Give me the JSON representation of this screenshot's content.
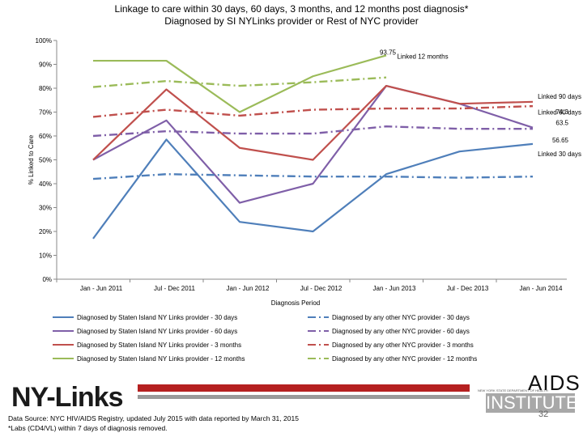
{
  "title_line1": "Linkage to care within 30 days, 60 days, 3 months, and 12 months post diagnosis*",
  "title_line2": "Diagnosed by SI NYLinks provider or Rest of NYC provider",
  "chart_data": {
    "type": "line",
    "title": "Linkage to care within 30 days, 60 days, 3 months, and 12 months post diagnosis* Diagnosed by SI NYLinks provider or Rest of NYC provider",
    "xlabel": "Diagnosis Period",
    "ylabel": "% Linked to Care",
    "ylim": [
      0,
      100
    ],
    "yticks": [
      "0%",
      "10%",
      "20%",
      "30%",
      "40%",
      "50%",
      "60%",
      "70%",
      "80%",
      "90%",
      "100%"
    ],
    "categories": [
      "Jan - Jun 2011",
      "Jul - Dec 2011",
      "Jan - Jun 2012",
      "Jul - Dec 2012",
      "Jan - Jun 2013",
      "Jul - Dec 2013",
      "Jan - Jun 2014"
    ],
    "series": [
      {
        "name": "Diagnosed by Staten Island NY Links provider - 30 days",
        "color": "#4f7fba",
        "dash": "solid",
        "values": [
          17,
          58.5,
          24,
          20,
          44,
          53.5,
          56.65
        ]
      },
      {
        "name": "Diagnosed by Staten Island NY Links provider - 60 days",
        "color": "#7f5fa8",
        "dash": "solid",
        "values": [
          50,
          66.5,
          32,
          40,
          81,
          73.5,
          63.5
        ]
      },
      {
        "name": "Diagnosed by Staten Island NY Links provider - 3 months",
        "color": "#c0504d",
        "dash": "solid",
        "values": [
          50,
          79.5,
          55,
          50,
          81,
          73.5,
          74.3
        ]
      },
      {
        "name": "Diagnosed by Staten Island NY Links provider - 12 months",
        "color": "#9bbb59",
        "dash": "solid",
        "values": [
          91.5,
          91.5,
          70,
          85,
          93.75,
          null,
          null
        ]
      },
      {
        "name": "Diagnosed by any other NYC provider - 30 days",
        "color": "#4f7fba",
        "dash": "dashdot",
        "values": [
          42,
          44,
          43.5,
          43,
          43,
          42.5,
          43
        ]
      },
      {
        "name": "Diagnosed by any other NYC provider - 60 days",
        "color": "#7f5fa8",
        "dash": "dashdot",
        "values": [
          60,
          62,
          61,
          61,
          64,
          63,
          63
        ]
      },
      {
        "name": "Diagnosed by any other NYC provider - 3 months",
        "color": "#c0504d",
        "dash": "dashdot",
        "values": [
          68,
          71,
          68.5,
          71,
          71.5,
          71.5,
          72.5
        ]
      },
      {
        "name": "Diagnosed by any other NYC provider - 12 months",
        "color": "#9bbb59",
        "dash": "dashdot",
        "values": [
          80.5,
          83,
          81,
          82.5,
          84.5,
          null,
          null
        ]
      }
    ],
    "annotations": [
      {
        "text": "93.75",
        "series": 3,
        "index": 4
      },
      {
        "text": "Linked 12 months",
        "series": 3,
        "index": 4
      },
      {
        "text": "Linked 90 days",
        "series": 2,
        "index": 6
      },
      {
        "text": "74.3",
        "series": 2,
        "index": 6
      },
      {
        "text": "Linked 60 days",
        "series": 1,
        "index": 6
      },
      {
        "text": "63.5",
        "series": 1,
        "index": 6
      },
      {
        "text": "56.65",
        "series": 0,
        "index": 6
      },
      {
        "text": "Linked 30 days",
        "series": 0,
        "index": 6
      }
    ]
  },
  "footer": {
    "source": "Data Source: NYC HIV/AIDS Registry, updated July 2015 with data reported by March 31, 2015",
    "note": "*Labs (CD4/VL) within 7 days of diagnosis removed.",
    "logo_left": "NY-Links",
    "logo_right_top": "AIDS",
    "logo_right_bottom": "INSTITUTE",
    "logo_right_sub": "NEW YORK STATE DEPARTMENT OF HEALTH",
    "page_number": "32"
  }
}
